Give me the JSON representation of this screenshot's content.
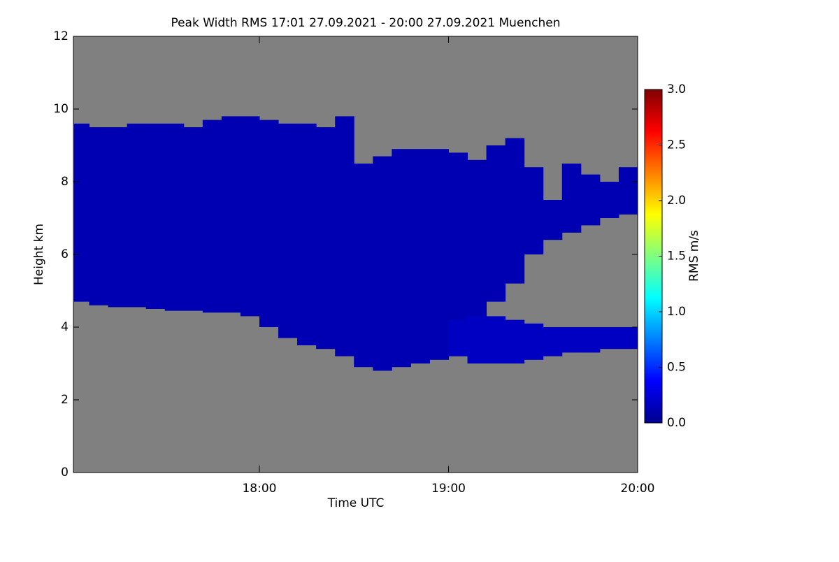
{
  "chart_data": {
    "type": "heatmap",
    "title": "Peak Width RMS   17:01 27.09.2021 - 20:00 27.09.2021 Muenchen",
    "x_label": "Time UTC",
    "y_label": "Height km",
    "colorbar_label": "RMS m/s",
    "xlim": [
      17.0167,
      20.0
    ],
    "xticks": [
      {
        "value": 18,
        "label": "18:00"
      },
      {
        "value": 19,
        "label": "19:00"
      },
      {
        "value": 20,
        "label": "20:00"
      }
    ],
    "ylim": [
      0,
      12
    ],
    "yticks": [
      0,
      2,
      4,
      6,
      8,
      10,
      12
    ],
    "clim": [
      0,
      3
    ],
    "cticks": [
      {
        "value": 0,
        "label": "0.0"
      },
      {
        "value": 0.5,
        "label": "0.5"
      },
      {
        "value": 1,
        "label": "1.0"
      },
      {
        "value": 1.5,
        "label": "1.5"
      },
      {
        "value": 2,
        "label": "2.0"
      },
      {
        "value": 2.5,
        "label": "2.5"
      },
      {
        "value": 3,
        "label": "3.0"
      }
    ],
    "background_color": "#808080",
    "series": [
      {
        "value": 0.15,
        "x": [
          17.02,
          17.1,
          17.2,
          17.3,
          17.4,
          17.5,
          17.6,
          17.7,
          17.8,
          17.9,
          18.0,
          18.1,
          18.2,
          18.3,
          18.4,
          18.5,
          18.6,
          18.7,
          18.8,
          18.9,
          19.0,
          19.1,
          19.2,
          19.3,
          19.4,
          19.5,
          19.6,
          19.7,
          19.8,
          19.9
        ],
        "top": [
          9.6,
          9.5,
          9.5,
          9.6,
          9.6,
          9.6,
          9.5,
          9.7,
          9.8,
          9.8,
          9.7,
          9.6,
          9.6,
          9.5,
          9.8,
          8.5,
          8.7,
          8.9,
          8.9,
          8.9,
          8.8,
          8.6,
          9.0,
          9.2,
          8.4,
          7.5,
          8.5,
          8.2,
          8.0,
          8.4
        ],
        "base": [
          4.7,
          4.6,
          4.55,
          4.55,
          4.5,
          4.45,
          4.45,
          4.4,
          4.4,
          4.3,
          4.0,
          3.7,
          3.5,
          3.4,
          3.2,
          2.9,
          2.8,
          2.9,
          3.0,
          3.1,
          3.2,
          4.2,
          4.7,
          5.2,
          6.0,
          6.4,
          6.6,
          6.8,
          7.0,
          7.1
        ]
      },
      {
        "value": 0.2,
        "x": [
          19.0,
          19.1,
          19.2,
          19.3,
          19.4,
          19.5,
          19.6,
          19.7,
          19.8,
          19.9
        ],
        "top": [
          4.2,
          4.3,
          4.3,
          4.2,
          4.1,
          4.0,
          4.0,
          4.0,
          4.0,
          4.0
        ],
        "base": [
          3.2,
          3.0,
          3.0,
          3.0,
          3.1,
          3.2,
          3.3,
          3.3,
          3.4,
          3.4
        ]
      }
    ]
  }
}
